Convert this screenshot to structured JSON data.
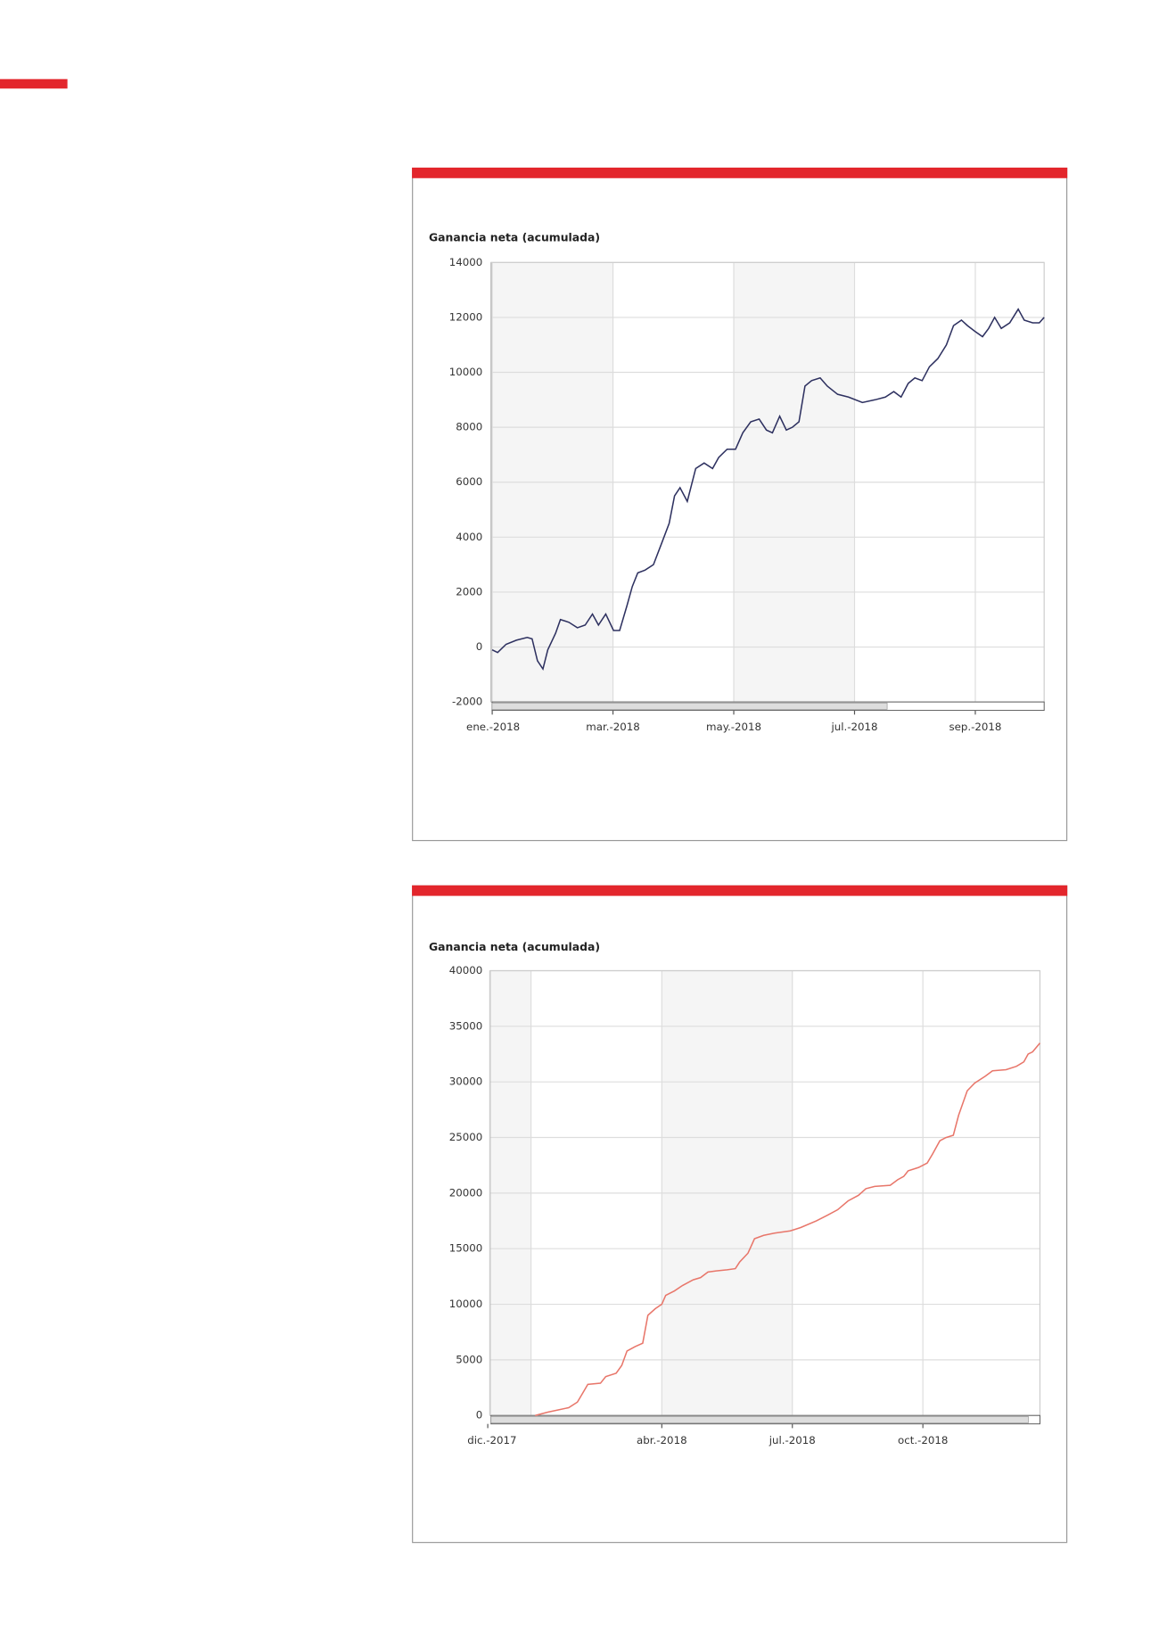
{
  "charts": [
    {
      "chart_data": {
        "type": "line",
        "title": "Ganancia neta (acumulada)",
        "xlim": [
          0.98,
          10.14
        ],
        "ylim": [
          -2000,
          14000
        ],
        "yticks": [
          -2000,
          0,
          2000,
          4000,
          6000,
          8000,
          10000,
          12000,
          14000
        ],
        "xticks": [
          {
            "value": 1,
            "label": "ene.-2018"
          },
          {
            "value": 3,
            "label": "mar.-2018"
          },
          {
            "value": 5,
            "label": "may.-2018"
          },
          {
            "value": 7,
            "label": "jul.-2018"
          },
          {
            "value": 9,
            "label": "sep.-2018"
          }
        ],
        "grid": true,
        "series": [
          {
            "color": "#2e3160",
            "x": [
              1.0,
              1.09,
              1.23,
              1.4,
              1.58,
              1.66,
              1.75,
              1.84,
              1.92,
              2.05,
              2.13,
              2.27,
              2.41,
              2.54,
              2.66,
              2.76,
              2.88,
              3.01,
              3.11,
              3.23,
              3.32,
              3.41,
              3.53,
              3.67,
              3.81,
              3.93,
              4.02,
              4.11,
              4.23,
              4.37,
              4.51,
              4.65,
              4.75,
              4.89,
              5.03,
              5.15,
              5.28,
              5.42,
              5.54,
              5.64,
              5.76,
              5.87,
              5.97,
              6.08,
              6.18,
              6.29,
              6.43,
              6.55,
              6.72,
              6.9,
              7.13,
              7.34,
              7.51,
              7.65,
              7.77,
              7.89,
              8.0,
              8.12,
              8.24,
              8.38,
              8.52,
              8.64,
              8.77,
              8.87,
              8.99,
              9.12,
              9.22,
              9.32,
              9.43,
              9.57,
              9.71,
              9.81,
              9.95,
              10.06,
              10.14
            ],
            "values": [
              -100,
              -200,
              100,
              250,
              350,
              300,
              -500,
              -800,
              -100,
              500,
              1000,
              900,
              700,
              800,
              1200,
              800,
              1200,
              600,
              600,
              1500,
              2200,
              2700,
              2800,
              3000,
              3800,
              4500,
              5500,
              5800,
              5300,
              6500,
              6700,
              6500,
              6900,
              7200,
              7200,
              7800,
              8200,
              8300,
              7900,
              7800,
              8400,
              7900,
              8000,
              8200,
              9500,
              9700,
              9800,
              9500,
              9200,
              9100,
              8900,
              9000,
              9100,
              9300,
              9100,
              9600,
              9800,
              9700,
              10200,
              10500,
              11000,
              11700,
              11900,
              11700,
              11500,
              11300,
              11600,
              12000,
              11600,
              11800,
              12300,
              11900,
              11800,
              11800,
              12000
            ]
          }
        ]
      }
    },
    {
      "chart_data": {
        "type": "line",
        "title": "Ganancia neta (acumulada)",
        "xlim": [
          0.05,
          12.69
        ],
        "ylim": [
          0,
          40000
        ],
        "yticks": [
          0,
          5000,
          10000,
          15000,
          20000,
          25000,
          30000,
          35000,
          40000
        ],
        "xticks": [
          {
            "value": 0,
            "label": "dic.-2017"
          },
          {
            "value": 4,
            "label": "abr.-2018"
          },
          {
            "value": 7,
            "label": "jul.-2018"
          },
          {
            "value": 10,
            "label": "oct.-2018"
          }
        ],
        "grid": true,
        "series": [
          {
            "color": "#e8766a",
            "x": [
              1.09,
              1.38,
              1.62,
              1.86,
              2.06,
              2.18,
              2.3,
              2.59,
              2.71,
              2.95,
              3.08,
              3.2,
              3.39,
              3.56,
              3.68,
              3.85,
              4.0,
              4.09,
              4.29,
              4.48,
              4.72,
              4.89,
              5.06,
              5.25,
              5.5,
              5.69,
              5.79,
              5.98,
              6.13,
              6.34,
              6.59,
              6.95,
              7.19,
              7.55,
              7.8,
              8.04,
              8.28,
              8.52,
              8.69,
              8.89,
              9.25,
              9.42,
              9.56,
              9.66,
              9.9,
              10.1,
              10.22,
              10.39,
              10.53,
              10.7,
              10.82,
              11.02,
              11.19,
              11.43,
              11.6,
              11.91,
              12.15,
              12.32,
              12.42,
              12.52,
              12.69
            ],
            "values": [
              0,
              300,
              500,
              700,
              1200,
              2000,
              2800,
              2900,
              3500,
              3800,
              4500,
              5800,
              6200,
              6500,
              9000,
              9600,
              10000,
              10800,
              11200,
              11700,
              12200,
              12400,
              12900,
              13000,
              13100,
              13200,
              13800,
              14600,
              15900,
              16200,
              16400,
              16600,
              16900,
              17500,
              18000,
              18500,
              19300,
              19800,
              20400,
              20600,
              20700,
              21200,
              21500,
              22000,
              22300,
              22700,
              23500,
              24700,
              25000,
              25200,
              27000,
              29200,
              29900,
              30500,
              31000,
              31100,
              31400,
              31800,
              32500,
              32700,
              33500
            ]
          }
        ]
      }
    }
  ]
}
